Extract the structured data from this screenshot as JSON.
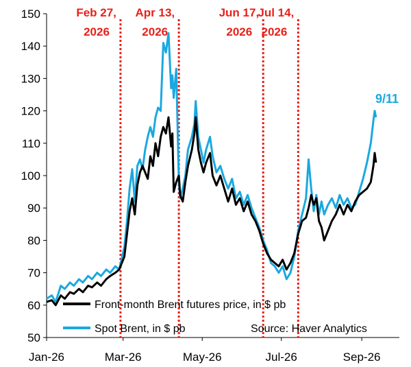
{
  "chart_data": {
    "type": "line",
    "xlim": [
      "2026-01-01",
      "2026-09-30"
    ],
    "ylim": [
      50,
      150
    ],
    "yticks": [
      50,
      60,
      70,
      80,
      90,
      100,
      110,
      120,
      130,
      140,
      150
    ],
    "xticks": [
      {
        "date": "2026-01-01",
        "label": "Jan-26"
      },
      {
        "date": "2026-03-01",
        "label": "Mar-26"
      },
      {
        "date": "2026-05-01",
        "label": "May-26"
      },
      {
        "date": "2026-07-01",
        "label": "Jul-26"
      },
      {
        "date": "2026-09-01",
        "label": "Sep-26"
      }
    ],
    "grid": false,
    "legend_position": "bottom",
    "colors": {
      "front_month": "#000000",
      "spot": "#1aa8e0",
      "event": "#e8201a"
    },
    "events": [
      {
        "date": "2026-02-27",
        "line1": "Feb 27,",
        "line2": "2026"
      },
      {
        "date": "2026-04-13",
        "line1": "Apr 13,",
        "line2": "2026"
      },
      {
        "date": "2026-06-17",
        "line1": "Jun 17,",
        "line2": "2026"
      },
      {
        "date": "2026-07-14",
        "line1": "Jul 14,",
        "line2": "2026"
      }
    ],
    "annotation": {
      "text": "9/11",
      "date": "2026-09-11"
    },
    "source": "Source: Haver Analytics",
    "series": [
      {
        "name": "Front-month Brent futures price, in $ pb",
        "key": "front_month",
        "points": [
          [
            "2026-01-01",
            61
          ],
          [
            "2026-01-05",
            61.5
          ],
          [
            "2026-01-08",
            60
          ],
          [
            "2026-01-12",
            63
          ],
          [
            "2026-01-15",
            62
          ],
          [
            "2026-01-19",
            64
          ],
          [
            "2026-01-22",
            63.5
          ],
          [
            "2026-01-26",
            65
          ],
          [
            "2026-01-29",
            64
          ],
          [
            "2026-02-02",
            66
          ],
          [
            "2026-02-05",
            65.5
          ],
          [
            "2026-02-09",
            67
          ],
          [
            "2026-02-12",
            66
          ],
          [
            "2026-02-16",
            68
          ],
          [
            "2026-02-19",
            69
          ],
          [
            "2026-02-23",
            70
          ],
          [
            "2026-02-26",
            71
          ],
          [
            "2026-03-02",
            75
          ],
          [
            "2026-03-04",
            82
          ],
          [
            "2026-03-06",
            89
          ],
          [
            "2026-03-08",
            93
          ],
          [
            "2026-03-10",
            88
          ],
          [
            "2026-03-12",
            97
          ],
          [
            "2026-03-14",
            101
          ],
          [
            "2026-03-16",
            103
          ],
          [
            "2026-03-18",
            101
          ],
          [
            "2026-03-20",
            99
          ],
          [
            "2026-03-22",
            106
          ],
          [
            "2026-03-24",
            103
          ],
          [
            "2026-03-26",
            110
          ],
          [
            "2026-03-28",
            106
          ],
          [
            "2026-03-30",
            112
          ],
          [
            "2026-04-01",
            115
          ],
          [
            "2026-04-03",
            113
          ],
          [
            "2026-04-05",
            118
          ],
          [
            "2026-04-07",
            109
          ],
          [
            "2026-04-08",
            113
          ],
          [
            "2026-04-09",
            95
          ],
          [
            "2026-04-11",
            98
          ],
          [
            "2026-04-13",
            100
          ],
          [
            "2026-04-14",
            94
          ],
          [
            "2026-04-16",
            92
          ],
          [
            "2026-04-18",
            98
          ],
          [
            "2026-04-20",
            103
          ],
          [
            "2026-04-23",
            108
          ],
          [
            "2026-04-25",
            113
          ],
          [
            "2026-04-26",
            118
          ],
          [
            "2026-04-28",
            108
          ],
          [
            "2026-04-30",
            104
          ],
          [
            "2026-05-02",
            101
          ],
          [
            "2026-05-04",
            104
          ],
          [
            "2026-05-07",
            107
          ],
          [
            "2026-05-09",
            100
          ],
          [
            "2026-05-12",
            97
          ],
          [
            "2026-05-15",
            100
          ],
          [
            "2026-05-18",
            96
          ],
          [
            "2026-05-21",
            92
          ],
          [
            "2026-05-24",
            96
          ],
          [
            "2026-05-27",
            91
          ],
          [
            "2026-05-30",
            93
          ],
          [
            "2026-06-02",
            89
          ],
          [
            "2026-06-05",
            92
          ],
          [
            "2026-06-08",
            88
          ],
          [
            "2026-06-11",
            86
          ],
          [
            "2026-06-14",
            83
          ],
          [
            "2026-06-17",
            79
          ],
          [
            "2026-06-20",
            76
          ],
          [
            "2026-06-23",
            74
          ],
          [
            "2026-06-26",
            73
          ],
          [
            "2026-06-29",
            72
          ],
          [
            "2026-07-02",
            74
          ],
          [
            "2026-07-05",
            71
          ],
          [
            "2026-07-08",
            73
          ],
          [
            "2026-07-11",
            76
          ],
          [
            "2026-07-14",
            82
          ],
          [
            "2026-07-17",
            86
          ],
          [
            "2026-07-20",
            87
          ],
          [
            "2026-07-22",
            90
          ],
          [
            "2026-07-24",
            94
          ],
          [
            "2026-07-26",
            91
          ],
          [
            "2026-07-28",
            93
          ],
          [
            "2026-07-30",
            86
          ],
          [
            "2026-08-01",
            84
          ],
          [
            "2026-08-03",
            80
          ],
          [
            "2026-08-06",
            83
          ],
          [
            "2026-08-09",
            86
          ],
          [
            "2026-08-12",
            88
          ],
          [
            "2026-08-15",
            91
          ],
          [
            "2026-08-18",
            88
          ],
          [
            "2026-08-21",
            91
          ],
          [
            "2026-08-24",
            89
          ],
          [
            "2026-08-27",
            92
          ],
          [
            "2026-08-30",
            94
          ],
          [
            "2026-09-02",
            95
          ],
          [
            "2026-09-05",
            96
          ],
          [
            "2026-09-08",
            98
          ],
          [
            "2026-09-10",
            103
          ],
          [
            "2026-09-11",
            107
          ],
          [
            "2026-09-12",
            104
          ]
        ]
      },
      {
        "name": "Spot Brent, in $ pb",
        "key": "spot",
        "points": [
          [
            "2026-01-01",
            62
          ],
          [
            "2026-01-05",
            63
          ],
          [
            "2026-01-08",
            61
          ],
          [
            "2026-01-12",
            66
          ],
          [
            "2026-01-15",
            65
          ],
          [
            "2026-01-19",
            67
          ],
          [
            "2026-01-22",
            66
          ],
          [
            "2026-01-26",
            68
          ],
          [
            "2026-01-29",
            67
          ],
          [
            "2026-02-02",
            69
          ],
          [
            "2026-02-05",
            68
          ],
          [
            "2026-02-09",
            70
          ],
          [
            "2026-02-12",
            69
          ],
          [
            "2026-02-16",
            71
          ],
          [
            "2026-02-19",
            70
          ],
          [
            "2026-02-23",
            72
          ],
          [
            "2026-02-26",
            71
          ],
          [
            "2026-03-02",
            78
          ],
          [
            "2026-03-04",
            86
          ],
          [
            "2026-03-06",
            96
          ],
          [
            "2026-03-08",
            102
          ],
          [
            "2026-03-10",
            92
          ],
          [
            "2026-03-12",
            103
          ],
          [
            "2026-03-14",
            105
          ],
          [
            "2026-03-16",
            102
          ],
          [
            "2026-03-18",
            108
          ],
          [
            "2026-03-20",
            112
          ],
          [
            "2026-03-22",
            115
          ],
          [
            "2026-03-24",
            112
          ],
          [
            "2026-03-26",
            118
          ],
          [
            "2026-03-28",
            121
          ],
          [
            "2026-03-30",
            120
          ],
          [
            "2026-04-01",
            141
          ],
          [
            "2026-04-03",
            138
          ],
          [
            "2026-04-05",
            144
          ],
          [
            "2026-04-07",
            127
          ],
          [
            "2026-04-08",
            131
          ],
          [
            "2026-04-09",
            124
          ],
          [
            "2026-04-11",
            133
          ],
          [
            "2026-04-13",
            98
          ],
          [
            "2026-04-14",
            93
          ],
          [
            "2026-04-16",
            96
          ],
          [
            "2026-04-18",
            100
          ],
          [
            "2026-04-20",
            108
          ],
          [
            "2026-04-23",
            112
          ],
          [
            "2026-04-25",
            116
          ],
          [
            "2026-04-26",
            123
          ],
          [
            "2026-04-28",
            112
          ],
          [
            "2026-04-30",
            108
          ],
          [
            "2026-05-02",
            104
          ],
          [
            "2026-05-04",
            108
          ],
          [
            "2026-05-07",
            112
          ],
          [
            "2026-05-09",
            106
          ],
          [
            "2026-05-12",
            101
          ],
          [
            "2026-05-15",
            103
          ],
          [
            "2026-05-18",
            99
          ],
          [
            "2026-05-21",
            96
          ],
          [
            "2026-05-24",
            99
          ],
          [
            "2026-05-27",
            93
          ],
          [
            "2026-05-30",
            95
          ],
          [
            "2026-06-02",
            91
          ],
          [
            "2026-06-05",
            94
          ],
          [
            "2026-06-08",
            90
          ],
          [
            "2026-06-11",
            87
          ],
          [
            "2026-06-14",
            84
          ],
          [
            "2026-06-17",
            80
          ],
          [
            "2026-06-20",
            77
          ],
          [
            "2026-06-23",
            73
          ],
          [
            "2026-06-26",
            72
          ],
          [
            "2026-06-29",
            70
          ],
          [
            "2026-07-02",
            72
          ],
          [
            "2026-07-05",
            68
          ],
          [
            "2026-07-08",
            70
          ],
          [
            "2026-07-11",
            75
          ],
          [
            "2026-07-14",
            83
          ],
          [
            "2026-07-17",
            88
          ],
          [
            "2026-07-20",
            93
          ],
          [
            "2026-07-22",
            105
          ],
          [
            "2026-07-24",
            96
          ],
          [
            "2026-07-26",
            89
          ],
          [
            "2026-07-28",
            94
          ],
          [
            "2026-07-30",
            88
          ],
          [
            "2026-08-01",
            92
          ],
          [
            "2026-08-03",
            88
          ],
          [
            "2026-08-06",
            91
          ],
          [
            "2026-08-09",
            93
          ],
          [
            "2026-08-12",
            90
          ],
          [
            "2026-08-15",
            94
          ],
          [
            "2026-08-18",
            91
          ],
          [
            "2026-08-21",
            93
          ],
          [
            "2026-08-24",
            90
          ],
          [
            "2026-08-27",
            91
          ],
          [
            "2026-08-30",
            95
          ],
          [
            "2026-09-02",
            99
          ],
          [
            "2026-09-05",
            104
          ],
          [
            "2026-09-08",
            110
          ],
          [
            "2026-09-10",
            117
          ],
          [
            "2026-09-11",
            120
          ],
          [
            "2026-09-12",
            118
          ]
        ]
      }
    ]
  }
}
